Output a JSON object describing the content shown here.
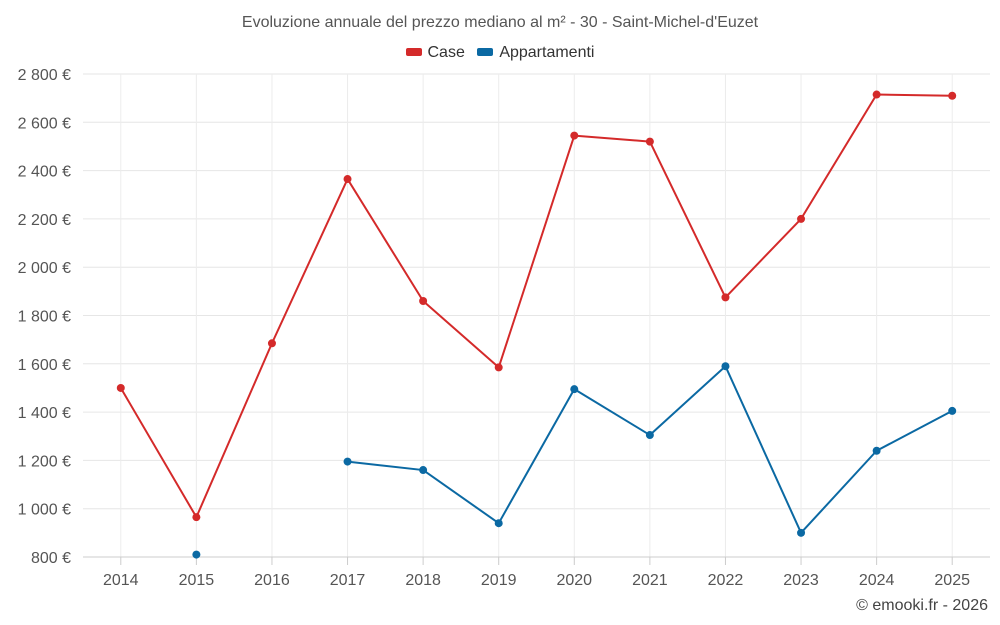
{
  "chart_data": {
    "type": "line",
    "title": "Evoluzione annuale del prezzo mediano al m² - 30 - Saint-Michel-d'Euzet",
    "categories": [
      "2014",
      "2015",
      "2016",
      "2017",
      "2018",
      "2019",
      "2020",
      "2021",
      "2022",
      "2023",
      "2024",
      "2025"
    ],
    "ylim": [
      800,
      2800
    ],
    "y_ticks": [
      800,
      1000,
      1200,
      1400,
      1600,
      1800,
      2000,
      2200,
      2400,
      2600,
      2800
    ],
    "y_tick_labels": [
      "800 €",
      "1 000 €",
      "1 200 €",
      "1 400 €",
      "1 600 €",
      "1 800 €",
      "2 000 €",
      "2 200 €",
      "2 400 €",
      "2 600 €",
      "2 800 €"
    ],
    "grid": true,
    "legend_position": "top-center",
    "series": [
      {
        "name": "Case",
        "color": "#d42a2a",
        "values": [
          1500,
          965,
          1685,
          2365,
          1860,
          1585,
          2545,
          2520,
          1875,
          2200,
          2715,
          2710
        ]
      },
      {
        "name": "Appartamenti",
        "color": "#0b69a3",
        "values": [
          null,
          810,
          null,
          1195,
          1160,
          940,
          1495,
          1305,
          1590,
          900,
          1240,
          1405
        ]
      }
    ]
  },
  "credits": "© emooki.fr - 2026"
}
